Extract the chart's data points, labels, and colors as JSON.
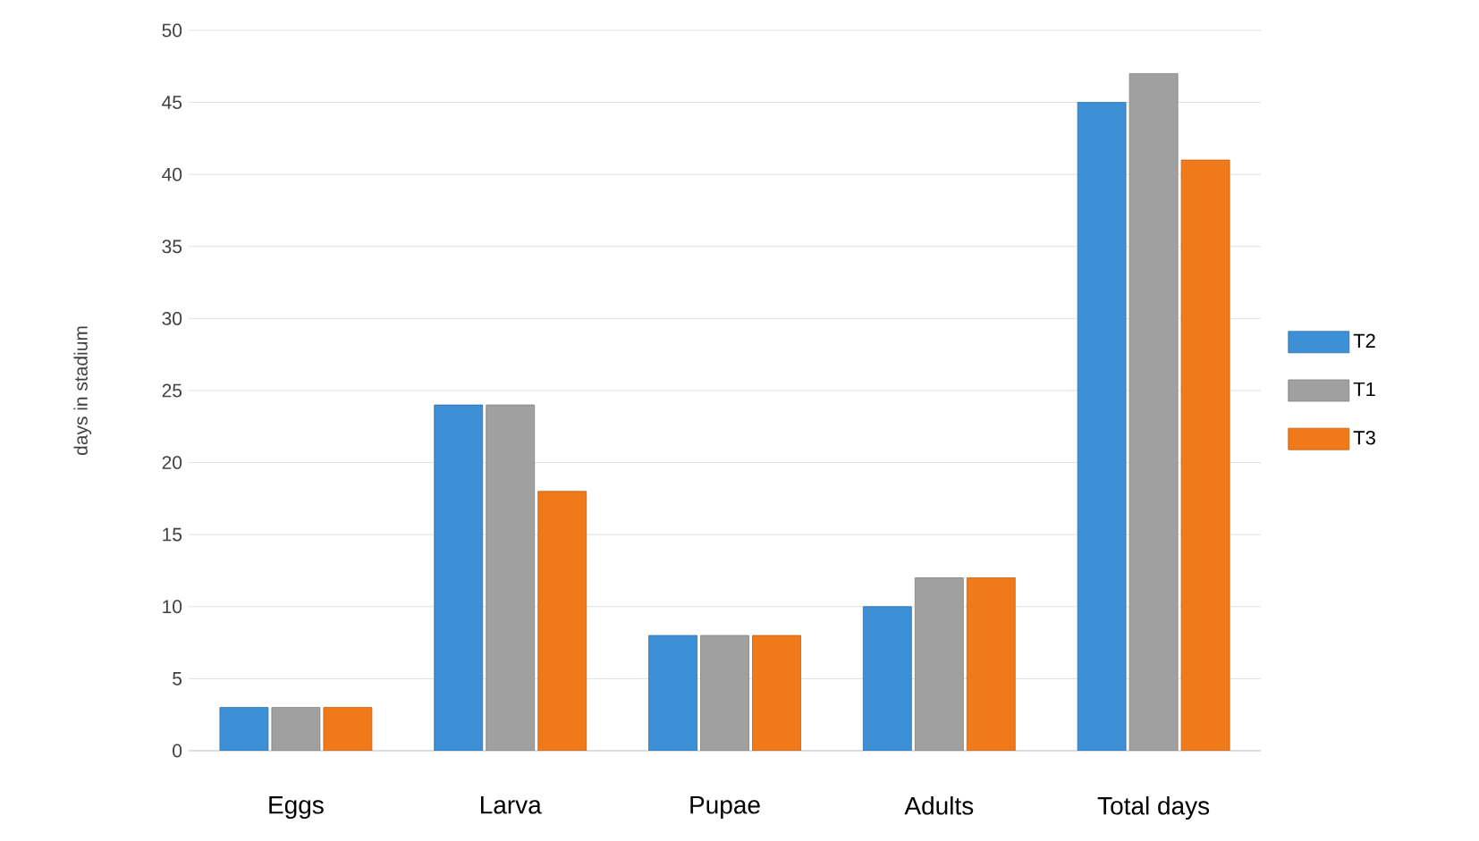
{
  "chart_data": {
    "type": "bar",
    "ylabel": "days in stadium",
    "categories": [
      "Eggs",
      "Larva",
      "Pupae",
      "Adults",
      "Total days"
    ],
    "series": [
      {
        "name": "T2",
        "color": "#3d8fd6",
        "values": [
          3,
          24,
          8,
          10,
          45
        ]
      },
      {
        "name": "T1",
        "color": "#a0a0a0",
        "values": [
          3,
          24,
          8,
          12,
          47
        ]
      },
      {
        "name": "T3",
        "color": "#f07a1a",
        "values": [
          3,
          18,
          8,
          12,
          41
        ]
      }
    ],
    "ylim": [
      0,
      50
    ],
    "yticks": [
      0,
      5,
      10,
      15,
      20,
      25,
      30,
      35,
      40,
      45,
      50
    ],
    "grid": "y",
    "legend": "right"
  }
}
